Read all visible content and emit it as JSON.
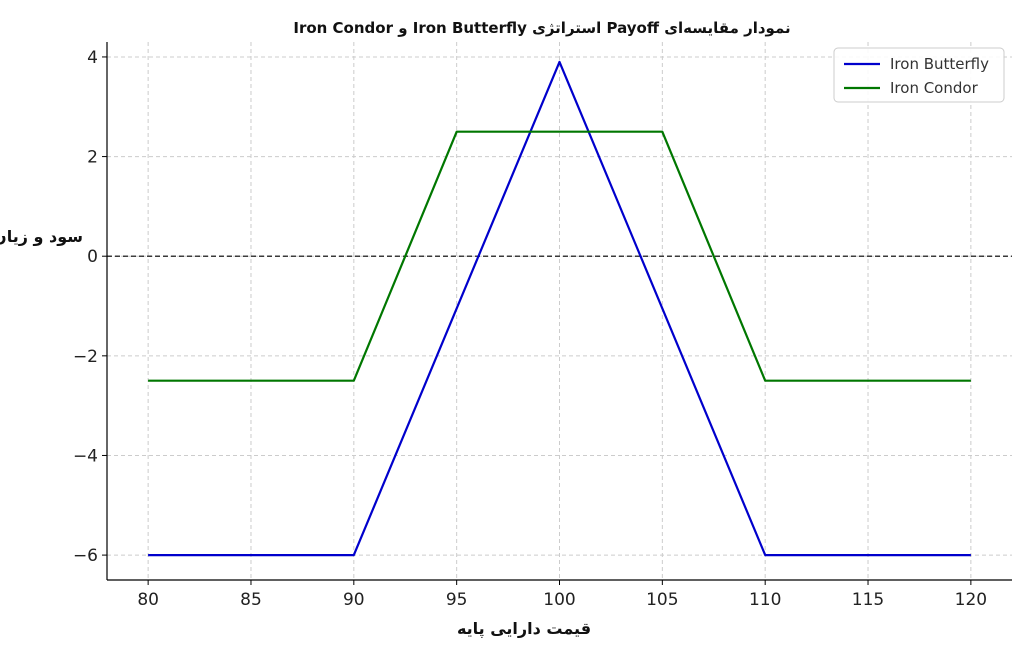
{
  "chart_data": {
    "type": "line",
    "title": "نمودار مقایسه‌ای Payoff استراتژی Iron Butterfly و Iron Condor",
    "xlabel": "قیمت دارایی پایه",
    "ylabel": "سود و زیان",
    "xlim": [
      78,
      122
    ],
    "ylim": [
      -6.5,
      4.3
    ],
    "xticks": [
      80,
      85,
      90,
      95,
      100,
      105,
      110,
      115,
      120
    ],
    "yticks": [
      -6,
      -4,
      -2,
      0,
      2,
      4
    ],
    "ytick_labels": [
      "−6",
      "−4",
      "−2",
      "0",
      "2",
      "4"
    ],
    "grid": true,
    "legend_position": "top-right",
    "zero_line": true,
    "series": [
      {
        "name": "Iron Butterfly",
        "color": "#0000cc",
        "x": [
          80,
          90,
          100,
          110,
          120
        ],
        "y": [
          -6,
          -6,
          3.9,
          -6,
          -6
        ]
      },
      {
        "name": "Iron Condor",
        "color": "#007700",
        "x": [
          80,
          90,
          95,
          105,
          110,
          120
        ],
        "y": [
          -2.5,
          -2.5,
          2.5,
          2.5,
          -2.5,
          -2.5
        ]
      }
    ]
  }
}
